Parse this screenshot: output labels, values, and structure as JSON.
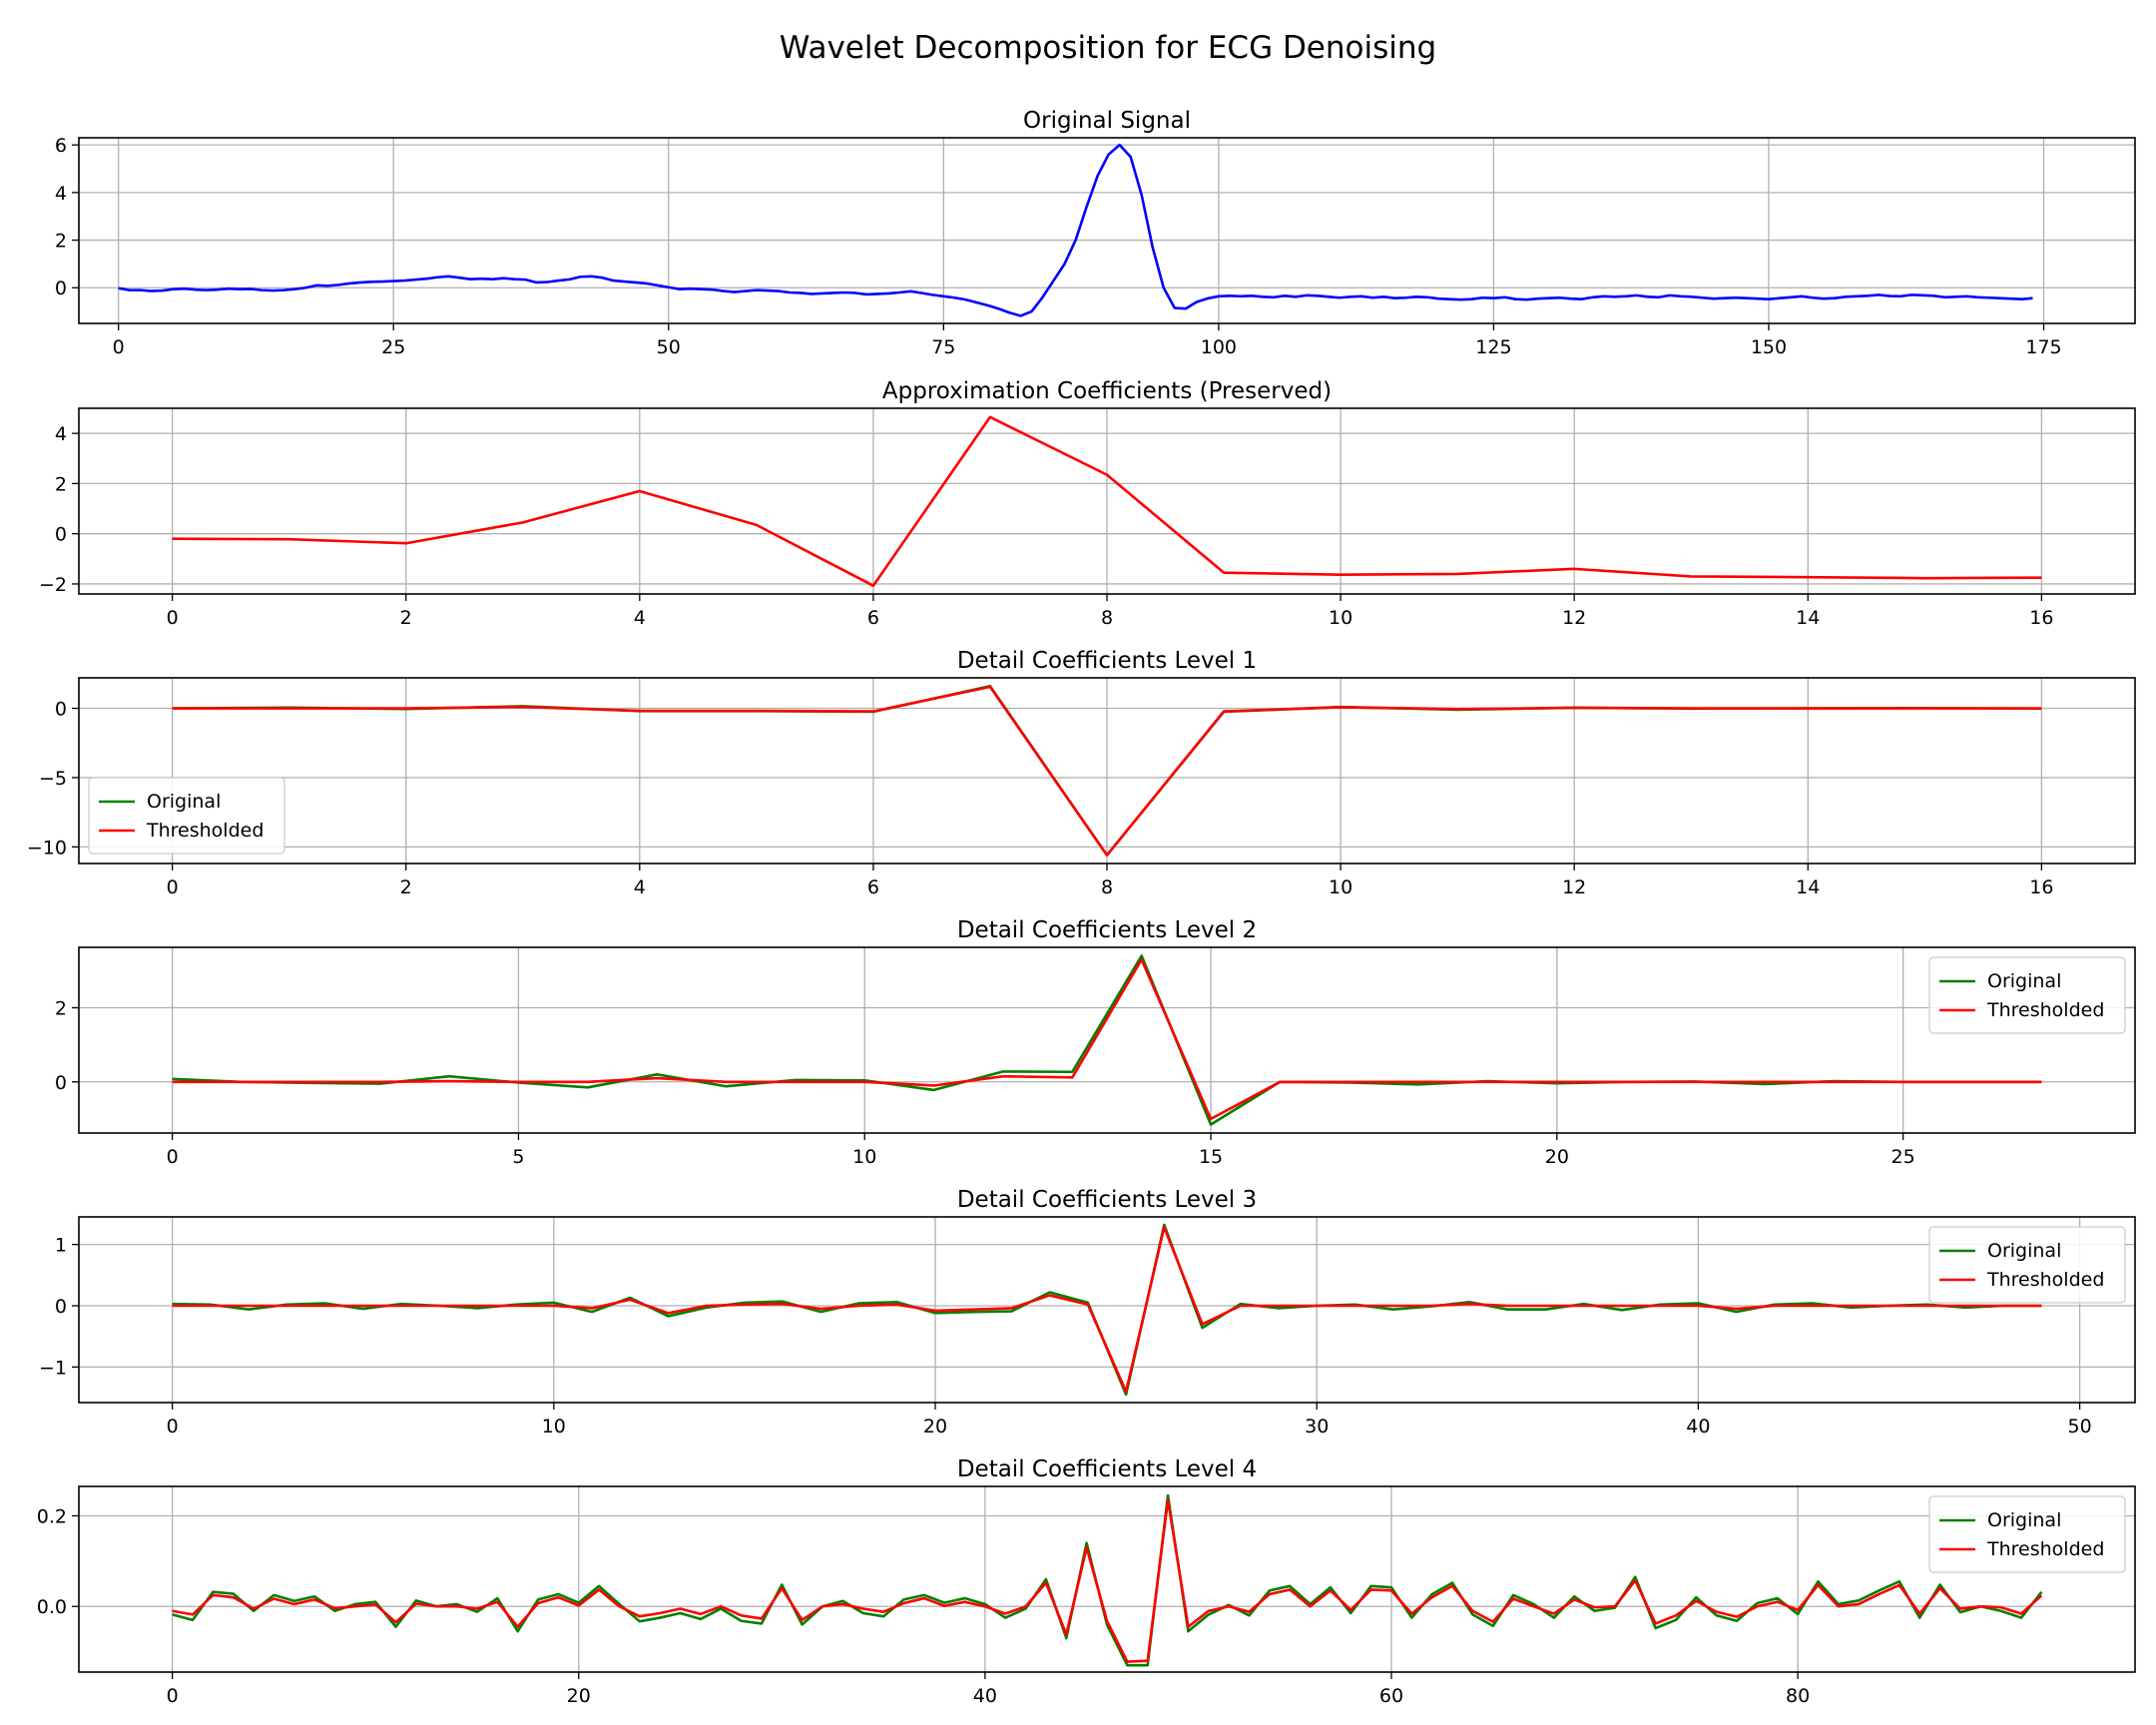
{
  "chart_data": {
    "title": "Wavelet Decomposition for ECG Denoising",
    "colors": {
      "signal": "#0000ff",
      "original": "#008000",
      "thresholded": "#ff0000",
      "grid": "#b0b0b0"
    },
    "legend_labels": {
      "original": "Original",
      "thresholded": "Thresholded"
    },
    "subplots": [
      {
        "type": "line",
        "title": "Original Signal",
        "xlim": [
          -3.6,
          183.3
        ],
        "ylim": [
          -1.5,
          6.3
        ],
        "xticks": [
          0,
          25,
          50,
          75,
          100,
          125,
          150,
          175
        ],
        "yticks": [
          0,
          2,
          4,
          6
        ],
        "legend": null,
        "series": [
          {
            "name": "",
            "color_key": "signal",
            "values": [
              -0.02,
              -0.1,
              -0.1,
              -0.14,
              -0.12,
              -0.06,
              -0.04,
              -0.08,
              -0.1,
              -0.08,
              -0.04,
              -0.06,
              -0.05,
              -0.1,
              -0.12,
              -0.1,
              -0.06,
              0.0,
              0.1,
              0.08,
              0.12,
              0.18,
              0.22,
              0.25,
              0.26,
              0.28,
              0.3,
              0.34,
              0.38,
              0.44,
              0.48,
              0.42,
              0.36,
              0.38,
              0.36,
              0.4,
              0.36,
              0.34,
              0.22,
              0.24,
              0.3,
              0.35,
              0.46,
              0.48,
              0.42,
              0.3,
              0.26,
              0.22,
              0.18,
              0.1,
              0.02,
              -0.06,
              -0.04,
              -0.06,
              -0.08,
              -0.14,
              -0.18,
              -0.14,
              -0.1,
              -0.12,
              -0.14,
              -0.2,
              -0.22,
              -0.26,
              -0.24,
              -0.22,
              -0.2,
              -0.22,
              -0.28,
              -0.26,
              -0.24,
              -0.2,
              -0.15,
              -0.22,
              -0.3,
              -0.36,
              -0.42,
              -0.5,
              -0.62,
              -0.74,
              -0.88,
              -1.05,
              -1.18,
              -1.0,
              -0.4,
              0.3,
              1.0,
              2.0,
              3.4,
              4.7,
              5.6,
              6.0,
              5.5,
              3.9,
              1.7,
              0.0,
              -0.85,
              -0.88,
              -0.6,
              -0.45,
              -0.36,
              -0.34,
              -0.36,
              -0.34,
              -0.38,
              -0.4,
              -0.34,
              -0.38,
              -0.32,
              -0.34,
              -0.38,
              -0.42,
              -0.38,
              -0.36,
              -0.42,
              -0.38,
              -0.44,
              -0.42,
              -0.38,
              -0.4,
              -0.46,
              -0.48,
              -0.5,
              -0.48,
              -0.42,
              -0.44,
              -0.4,
              -0.48,
              -0.5,
              -0.46,
              -0.44,
              -0.42,
              -0.46,
              -0.48,
              -0.4,
              -0.36,
              -0.38,
              -0.36,
              -0.32,
              -0.38,
              -0.4,
              -0.32,
              -0.36,
              -0.38,
              -0.42,
              -0.46,
              -0.44,
              -0.42,
              -0.44,
              -0.46,
              -0.48,
              -0.44,
              -0.4,
              -0.36,
              -0.42,
              -0.46,
              -0.44,
              -0.38,
              -0.36,
              -0.34,
              -0.3,
              -0.35,
              -0.36,
              -0.3,
              -0.32,
              -0.34,
              -0.4,
              -0.38,
              -0.36,
              -0.4,
              -0.42,
              -0.44,
              -0.46,
              -0.48,
              -0.44
            ]
          }
        ]
      },
      {
        "type": "line",
        "title": "Approximation Coefficients (Preserved)",
        "xlim": [
          -0.8,
          16.8
        ],
        "ylim": [
          -2.4,
          5.0
        ],
        "xticks": [
          0,
          2,
          4,
          6,
          8,
          10,
          12,
          14,
          16
        ],
        "yticks": [
          -2,
          0,
          2,
          4
        ],
        "legend": null,
        "series": [
          {
            "name": "",
            "color_key": "thresholded",
            "values": [
              -0.2,
              -0.22,
              -0.38,
              0.45,
              1.7,
              0.35,
              -2.07,
              4.65,
              2.35,
              -1.55,
              -1.63,
              -1.6,
              -1.4,
              -1.7,
              -1.73,
              -1.77,
              -1.75
            ]
          }
        ]
      },
      {
        "type": "line",
        "title": "Detail Coefficients Level 1",
        "xlim": [
          -0.8,
          16.8
        ],
        "ylim": [
          -11.2,
          2.2
        ],
        "xticks": [
          0,
          2,
          4,
          6,
          8,
          10,
          12,
          14,
          16
        ],
        "yticks": [
          -10,
          -5,
          0
        ],
        "legend": "lower left",
        "series": [
          {
            "name": "Original",
            "color_key": "original",
            "values": [
              0.0,
              0.05,
              -0.05,
              0.15,
              -0.2,
              -0.2,
              -0.25,
              1.6,
              -10.6,
              -0.25,
              0.1,
              -0.1,
              0.05,
              -0.02,
              0.0,
              0.02,
              -0.02
            ]
          },
          {
            "name": "Thresholded",
            "color_key": "thresholded",
            "values": [
              0.0,
              0.0,
              0.0,
              0.1,
              -0.18,
              -0.18,
              -0.22,
              1.55,
              -10.6,
              -0.22,
              0.08,
              -0.05,
              0.03,
              0.0,
              0.0,
              0.0,
              0.0
            ]
          }
        ]
      },
      {
        "type": "line",
        "title": "Detail Coefficients Level 2",
        "xlim": [
          -1.35,
          28.35
        ],
        "ylim": [
          -1.38,
          3.63
        ],
        "xticks": [
          0,
          5,
          10,
          15,
          20,
          25
        ],
        "yticks": [
          0,
          2
        ],
        "legend": "upper right",
        "series": [
          {
            "name": "Original",
            "color_key": "original",
            "values": [
              0.08,
              0.0,
              -0.03,
              -0.05,
              0.15,
              -0.02,
              -0.15,
              0.2,
              -0.12,
              0.05,
              0.04,
              -0.22,
              0.28,
              0.27,
              3.4,
              -1.15,
              0.0,
              -0.02,
              -0.07,
              0.02,
              -0.04,
              0.0,
              0.01,
              -0.06,
              0.02,
              0.0,
              0.0,
              0.0
            ]
          },
          {
            "name": "Thresholded",
            "color_key": "thresholded",
            "values": [
              0.0,
              0.0,
              0.0,
              0.0,
              0.02,
              0.0,
              0.0,
              0.1,
              0.0,
              0.0,
              0.0,
              -0.1,
              0.15,
              0.12,
              3.3,
              -1.0,
              0.0,
              0.0,
              0.0,
              0.0,
              0.0,
              0.0,
              0.0,
              0.0,
              0.0,
              0.0,
              0.0,
              0.0
            ]
          }
        ]
      },
      {
        "type": "line",
        "title": "Detail Coefficients Level 3",
        "xlim": [
          -2.45,
          51.45
        ],
        "ylim": [
          -1.58,
          1.45
        ],
        "xticks": [
          0,
          10,
          20,
          30,
          40,
          50
        ],
        "yticks": [
          -1,
          0,
          1
        ],
        "legend": "upper right",
        "series": [
          {
            "name": "Original",
            "color_key": "original",
            "values": [
              0.03,
              0.02,
              -0.06,
              0.02,
              0.04,
              -0.05,
              0.03,
              0.0,
              -0.04,
              0.02,
              0.05,
              -0.1,
              0.13,
              -0.17,
              -0.03,
              0.05,
              0.07,
              -0.1,
              0.04,
              0.06,
              -0.12,
              -0.1,
              -0.09,
              0.22,
              0.05,
              -1.45,
              1.32,
              -0.36,
              0.03,
              -0.04,
              0.0,
              0.02,
              -0.06,
              -0.01,
              0.06,
              -0.06,
              -0.06,
              0.03,
              -0.07,
              0.02,
              0.04,
              -0.1,
              0.02,
              0.04,
              -0.03,
              0.0,
              0.02,
              -0.03,
              0.0,
              0.0
            ]
          },
          {
            "name": "Thresholded",
            "color_key": "thresholded",
            "values": [
              0.0,
              0.0,
              0.0,
              0.0,
              0.0,
              0.0,
              0.0,
              0.0,
              0.0,
              0.0,
              0.0,
              -0.04,
              0.1,
              -0.12,
              0.0,
              0.02,
              0.03,
              -0.05,
              0.0,
              0.02,
              -0.08,
              -0.06,
              -0.04,
              0.17,
              0.02,
              -1.4,
              1.28,
              -0.3,
              0.0,
              0.0,
              0.0,
              0.0,
              0.0,
              0.0,
              0.03,
              0.0,
              0.0,
              0.0,
              0.0,
              0.0,
              0.0,
              -0.05,
              0.0,
              0.0,
              0.0,
              0.0,
              0.0,
              0.0,
              0.0,
              0.0
            ]
          }
        ]
      },
      {
        "type": "line",
        "title": "Detail Coefficients Level 4",
        "xlim": [
          -4.6,
          96.6
        ],
        "ylim": [
          -0.145,
          0.265
        ],
        "xticks": [
          0,
          20,
          40,
          60,
          80
        ],
        "yticks": [
          0.0,
          0.2
        ],
        "legend": "upper right",
        "series": [
          {
            "name": "Original",
            "color_key": "original",
            "values": [
              -0.018,
              -0.03,
              0.032,
              0.028,
              -0.01,
              0.025,
              0.012,
              0.022,
              -0.01,
              0.005,
              0.01,
              -0.045,
              0.013,
              0.0,
              0.005,
              -0.012,
              0.018,
              -0.055,
              0.015,
              0.027,
              0.008,
              0.045,
              0.005,
              -0.033,
              -0.025,
              -0.015,
              -0.028,
              -0.005,
              -0.032,
              -0.038,
              0.048,
              -0.04,
              0.0,
              0.012,
              -0.015,
              -0.022,
              0.015,
              0.025,
              0.008,
              0.018,
              0.005,
              -0.025,
              -0.005,
              0.06,
              -0.07,
              0.14,
              -0.04,
              -0.13,
              -0.13,
              0.245,
              -0.055,
              -0.018,
              0.003,
              -0.02,
              0.035,
              0.045,
              0.005,
              0.042,
              -0.015,
              0.045,
              0.042,
              -0.025,
              0.027,
              0.052,
              -0.018,
              -0.043,
              0.025,
              0.005,
              -0.025,
              0.022,
              -0.01,
              -0.003,
              0.065,
              -0.048,
              -0.03,
              0.02,
              -0.02,
              -0.032,
              0.007,
              0.018,
              -0.017,
              0.055,
              0.005,
              0.013,
              0.035,
              0.055,
              -0.025,
              0.048,
              -0.013,
              0.0,
              -0.01,
              -0.025,
              0.032
            ]
          },
          {
            "name": "Thresholded",
            "color_key": "thresholded",
            "values": [
              -0.01,
              -0.018,
              0.025,
              0.02,
              -0.005,
              0.017,
              0.005,
              0.015,
              -0.004,
              0.0,
              0.004,
              -0.035,
              0.006,
              0.0,
              0.0,
              -0.005,
              0.01,
              -0.045,
              0.007,
              0.02,
              0.002,
              0.037,
              0.0,
              -0.022,
              -0.015,
              -0.005,
              -0.017,
              0.0,
              -0.02,
              -0.027,
              0.04,
              -0.03,
              0.0,
              0.005,
              -0.005,
              -0.012,
              0.007,
              0.018,
              0.001,
              0.01,
              0.0,
              -0.016,
              0.0,
              0.052,
              -0.062,
              0.13,
              -0.032,
              -0.122,
              -0.12,
              0.235,
              -0.045,
              -0.01,
              0.0,
              -0.012,
              0.027,
              0.037,
              0.0,
              0.035,
              -0.008,
              0.037,
              0.035,
              -0.016,
              0.02,
              0.045,
              -0.01,
              -0.034,
              0.017,
              0.0,
              -0.016,
              0.015,
              -0.002,
              0.0,
              0.057,
              -0.038,
              -0.02,
              0.012,
              -0.012,
              -0.023,
              0.0,
              0.01,
              -0.008,
              0.047,
              0.0,
              0.005,
              0.027,
              0.047,
              -0.016,
              0.04,
              -0.005,
              0.0,
              -0.002,
              -0.016,
              0.024
            ]
          }
        ]
      }
    ]
  }
}
